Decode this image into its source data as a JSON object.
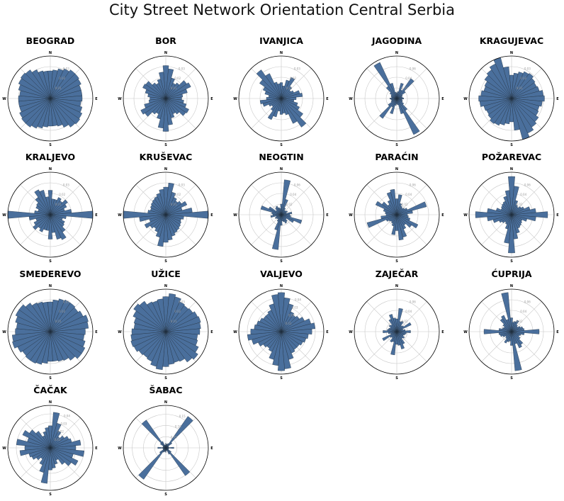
{
  "title": "City Street Network Orientation Central Serbia",
  "chart_data": {
    "type": "polar-histogram",
    "cardinal_labels": [
      "N",
      "E",
      "S",
      "W"
    ],
    "bins": 36,
    "bin_width_deg": 10,
    "bar_color": "#4a6f9c",
    "grid": true,
    "panels": [
      {
        "name": "BEOGRAD",
        "ticks": [
          "0.01",
          "0.02",
          "0.03"
        ],
        "rmax": 0.04,
        "values": [
          0.026,
          0.027,
          0.029,
          0.031,
          0.033,
          0.033,
          0.032,
          0.03,
          0.03,
          0.03,
          0.029,
          0.031,
          0.033,
          0.034,
          0.033,
          0.03,
          0.027,
          0.026,
          0.026,
          0.027,
          0.029,
          0.031,
          0.033,
          0.033,
          0.032,
          0.03,
          0.03,
          0.03,
          0.029,
          0.031,
          0.033,
          0.034,
          0.033,
          0.03,
          0.027,
          0.026
        ]
      },
      {
        "name": "BOR",
        "ticks": [
          "0.01",
          "0.02",
          "0.03"
        ],
        "rmax": 0.04,
        "values": [
          0.031,
          0.028,
          0.02,
          0.016,
          0.018,
          0.024,
          0.026,
          0.021,
          0.016,
          0.015,
          0.017,
          0.02,
          0.024,
          0.023,
          0.018,
          0.016,
          0.019,
          0.025,
          0.031,
          0.028,
          0.02,
          0.016,
          0.018,
          0.024,
          0.026,
          0.021,
          0.016,
          0.015,
          0.017,
          0.02,
          0.024,
          0.023,
          0.018,
          0.016,
          0.019,
          0.025
        ]
      },
      {
        "name": "IVANJICA",
        "ticks": [
          "0.01",
          "0.02",
          "0.03"
        ],
        "rmax": 0.04,
        "values": [
          0.015,
          0.012,
          0.018,
          0.022,
          0.014,
          0.011,
          0.013,
          0.018,
          0.02,
          0.014,
          0.012,
          0.016,
          0.019,
          0.025,
          0.033,
          0.026,
          0.016,
          0.014,
          0.015,
          0.012,
          0.018,
          0.022,
          0.014,
          0.011,
          0.013,
          0.018,
          0.02,
          0.014,
          0.012,
          0.016,
          0.019,
          0.025,
          0.033,
          0.026,
          0.016,
          0.014
        ]
      },
      {
        "name": "JAGODINA",
        "ticks": [
          "0.02",
          "0.04",
          "0.06"
        ],
        "rmax": 0.08,
        "values": [
          0.01,
          0.013,
          0.03,
          0.018,
          0.046,
          0.02,
          0.012,
          0.01,
          0.011,
          0.013,
          0.01,
          0.011,
          0.012,
          0.016,
          0.028,
          0.075,
          0.03,
          0.012,
          0.01,
          0.013,
          0.03,
          0.018,
          0.046,
          0.02,
          0.012,
          0.01,
          0.011,
          0.013,
          0.01,
          0.011,
          0.012,
          0.016,
          0.028,
          0.075,
          0.03,
          0.012
        ]
      },
      {
        "name": "KRAGUJEVAC",
        "ticks": [
          "0.01",
          "0.02",
          "0.03"
        ],
        "rmax": 0.04,
        "values": [
          0.022,
          0.024,
          0.026,
          0.028,
          0.029,
          0.027,
          0.026,
          0.027,
          0.03,
          0.031,
          0.029,
          0.027,
          0.028,
          0.031,
          0.033,
          0.036,
          0.04,
          0.03,
          0.022,
          0.024,
          0.026,
          0.028,
          0.029,
          0.027,
          0.026,
          0.027,
          0.03,
          0.031,
          0.029,
          0.027,
          0.028,
          0.031,
          0.033,
          0.036,
          0.04,
          0.03
        ]
      },
      {
        "name": "KRALJEVO",
        "ticks": [
          "0.01",
          "0.02",
          "0.03"
        ],
        "rmax": 0.04,
        "values": [
          0.023,
          0.015,
          0.015,
          0.018,
          0.016,
          0.02,
          0.017,
          0.014,
          0.02,
          0.04,
          0.015,
          0.012,
          0.015,
          0.016,
          0.02,
          0.026,
          0.024,
          0.017,
          0.023,
          0.015,
          0.015,
          0.018,
          0.016,
          0.02,
          0.017,
          0.014,
          0.02,
          0.04,
          0.015,
          0.012,
          0.015,
          0.016,
          0.02,
          0.026,
          0.024,
          0.017
        ]
      },
      {
        "name": "KRUŠEVAC",
        "ticks": [
          "0.01",
          "0.02",
          "0.03"
        ],
        "rmax": 0.04,
        "values": [
          0.026,
          0.03,
          0.022,
          0.018,
          0.016,
          0.018,
          0.022,
          0.016,
          0.025,
          0.04,
          0.017,
          0.015,
          0.016,
          0.017,
          0.018,
          0.019,
          0.021,
          0.024,
          0.026,
          0.03,
          0.022,
          0.018,
          0.016,
          0.018,
          0.022,
          0.016,
          0.025,
          0.04,
          0.017,
          0.015,
          0.016,
          0.017,
          0.018,
          0.019,
          0.021,
          0.024
        ]
      },
      {
        "name": "NEOGTIN",
        "ticks": [
          "0.02",
          "0.04",
          "0.06"
        ],
        "rmax": 0.08,
        "values": [
          0.02,
          0.066,
          0.03,
          0.014,
          0.01,
          0.011,
          0.013,
          0.01,
          0.02,
          0.016,
          0.018,
          0.04,
          0.026,
          0.012,
          0.016,
          0.018,
          0.014,
          0.012,
          0.02,
          0.066,
          0.03,
          0.014,
          0.01,
          0.011,
          0.013,
          0.01,
          0.02,
          0.016,
          0.018,
          0.04,
          0.026,
          0.012,
          0.016,
          0.018,
          0.014,
          0.012
        ]
      },
      {
        "name": "PARAĆIN",
        "ticks": [
          "0.02",
          "0.04",
          "0.06"
        ],
        "rmax": 0.08,
        "values": [
          0.03,
          0.038,
          0.022,
          0.018,
          0.016,
          0.018,
          0.022,
          0.058,
          0.03,
          0.02,
          0.022,
          0.026,
          0.044,
          0.034,
          0.024,
          0.03,
          0.044,
          0.048,
          0.03,
          0.038,
          0.022,
          0.018,
          0.016,
          0.018,
          0.022,
          0.058,
          0.03,
          0.02,
          0.022,
          0.026,
          0.044,
          0.034,
          0.024,
          0.03,
          0.044,
          0.048
        ]
      },
      {
        "name": "POŽAREVAC",
        "ticks": [
          "0.02",
          "0.04",
          "0.06"
        ],
        "rmax": 0.08,
        "values": [
          0.072,
          0.054,
          0.028,
          0.02,
          0.018,
          0.022,
          0.026,
          0.036,
          0.046,
          0.068,
          0.046,
          0.03,
          0.022,
          0.024,
          0.026,
          0.028,
          0.036,
          0.046,
          0.072,
          0.054,
          0.028,
          0.02,
          0.018,
          0.022,
          0.026,
          0.036,
          0.046,
          0.068,
          0.046,
          0.03,
          0.022,
          0.024,
          0.026,
          0.028,
          0.036,
          0.046
        ]
      },
      {
        "name": "SMEDEREVO",
        "ticks": [
          "0.01",
          "0.02",
          "0.03"
        ],
        "rmax": 0.04,
        "values": [
          0.028,
          0.03,
          0.032,
          0.033,
          0.033,
          0.032,
          0.034,
          0.037,
          0.036,
          0.033,
          0.032,
          0.034,
          0.036,
          0.036,
          0.033,
          0.03,
          0.029,
          0.028,
          0.028,
          0.03,
          0.032,
          0.033,
          0.033,
          0.032,
          0.034,
          0.037,
          0.036,
          0.033,
          0.032,
          0.034,
          0.036,
          0.036,
          0.033,
          0.03,
          0.029,
          0.028
        ]
      },
      {
        "name": "UŽICE",
        "ticks": [
          "0.01",
          "0.02",
          "0.03"
        ],
        "rmax": 0.04,
        "values": [
          0.033,
          0.036,
          0.034,
          0.031,
          0.03,
          0.031,
          0.033,
          0.034,
          0.033,
          0.032,
          0.03,
          0.031,
          0.034,
          0.037,
          0.035,
          0.031,
          0.03,
          0.031,
          0.033,
          0.036,
          0.034,
          0.031,
          0.03,
          0.031,
          0.033,
          0.034,
          0.033,
          0.032,
          0.03,
          0.031,
          0.034,
          0.037,
          0.035,
          0.031,
          0.03,
          0.031
        ]
      },
      {
        "name": "VALJEVO",
        "ticks": [
          "0.01",
          "0.02",
          "0.03",
          "0.04"
        ],
        "rmax": 0.05,
        "values": [
          0.046,
          0.04,
          0.034,
          0.026,
          0.024,
          0.026,
          0.03,
          0.036,
          0.04,
          0.036,
          0.032,
          0.03,
          0.028,
          0.026,
          0.026,
          0.028,
          0.034,
          0.044,
          0.046,
          0.04,
          0.034,
          0.026,
          0.024,
          0.026,
          0.03,
          0.036,
          0.04,
          0.036,
          0.032,
          0.03,
          0.028,
          0.026,
          0.026,
          0.028,
          0.034,
          0.044
        ]
      },
      {
        "name": "ZAJEČAR",
        "ticks": [
          "0.02",
          "0.04",
          "0.06"
        ],
        "rmax": 0.08,
        "values": [
          0.024,
          0.044,
          0.02,
          0.022,
          0.014,
          0.016,
          0.03,
          0.012,
          0.016,
          0.026,
          0.018,
          0.016,
          0.014,
          0.018,
          0.016,
          0.026,
          0.034,
          0.026,
          0.024,
          0.044,
          0.02,
          0.022,
          0.014,
          0.016,
          0.03,
          0.012,
          0.016,
          0.026,
          0.018,
          0.016,
          0.014,
          0.018,
          0.016,
          0.026,
          0.034,
          0.026
        ]
      },
      {
        "name": "ĆUPRIJA",
        "ticks": [
          "0.02",
          "0.04",
          "0.06"
        ],
        "rmax": 0.08,
        "values": [
          0.026,
          0.018,
          0.02,
          0.024,
          0.016,
          0.014,
          0.018,
          0.022,
          0.024,
          0.052,
          0.024,
          0.018,
          0.016,
          0.02,
          0.03,
          0.034,
          0.024,
          0.074,
          0.026,
          0.018,
          0.02,
          0.024,
          0.016,
          0.014,
          0.018,
          0.022,
          0.024,
          0.052,
          0.024,
          0.018,
          0.016,
          0.02,
          0.03,
          0.034,
          0.024,
          0.074
        ]
      },
      {
        "name": "ČAČAK",
        "ticks": [
          "0.01",
          "0.02",
          "0.03",
          "0.04"
        ],
        "rmax": 0.05,
        "values": [
          0.026,
          0.042,
          0.03,
          0.022,
          0.016,
          0.02,
          0.024,
          0.026,
          0.036,
          0.03,
          0.04,
          0.028,
          0.036,
          0.03,
          0.024,
          0.016,
          0.02,
          0.024,
          0.026,
          0.042,
          0.03,
          0.022,
          0.016,
          0.02,
          0.024,
          0.026,
          0.036,
          0.03,
          0.04,
          0.028,
          0.036,
          0.03,
          0.024,
          0.016,
          0.02,
          0.024
        ]
      },
      {
        "name": "ŠABAC",
        "ticks": [
          "0.05",
          "0.10",
          "0.15"
        ],
        "rmax": 0.19,
        "values": [
          0.02,
          0.016,
          0.018,
          0.022,
          0.172,
          0.034,
          0.014,
          0.012,
          0.014,
          0.036,
          0.014,
          0.012,
          0.014,
          0.03,
          0.152,
          0.032,
          0.014,
          0.012,
          0.02,
          0.016,
          0.018,
          0.022,
          0.172,
          0.034,
          0.014,
          0.012,
          0.014,
          0.036,
          0.014,
          0.012,
          0.014,
          0.03,
          0.152,
          0.032,
          0.014,
          0.012
        ]
      }
    ]
  }
}
